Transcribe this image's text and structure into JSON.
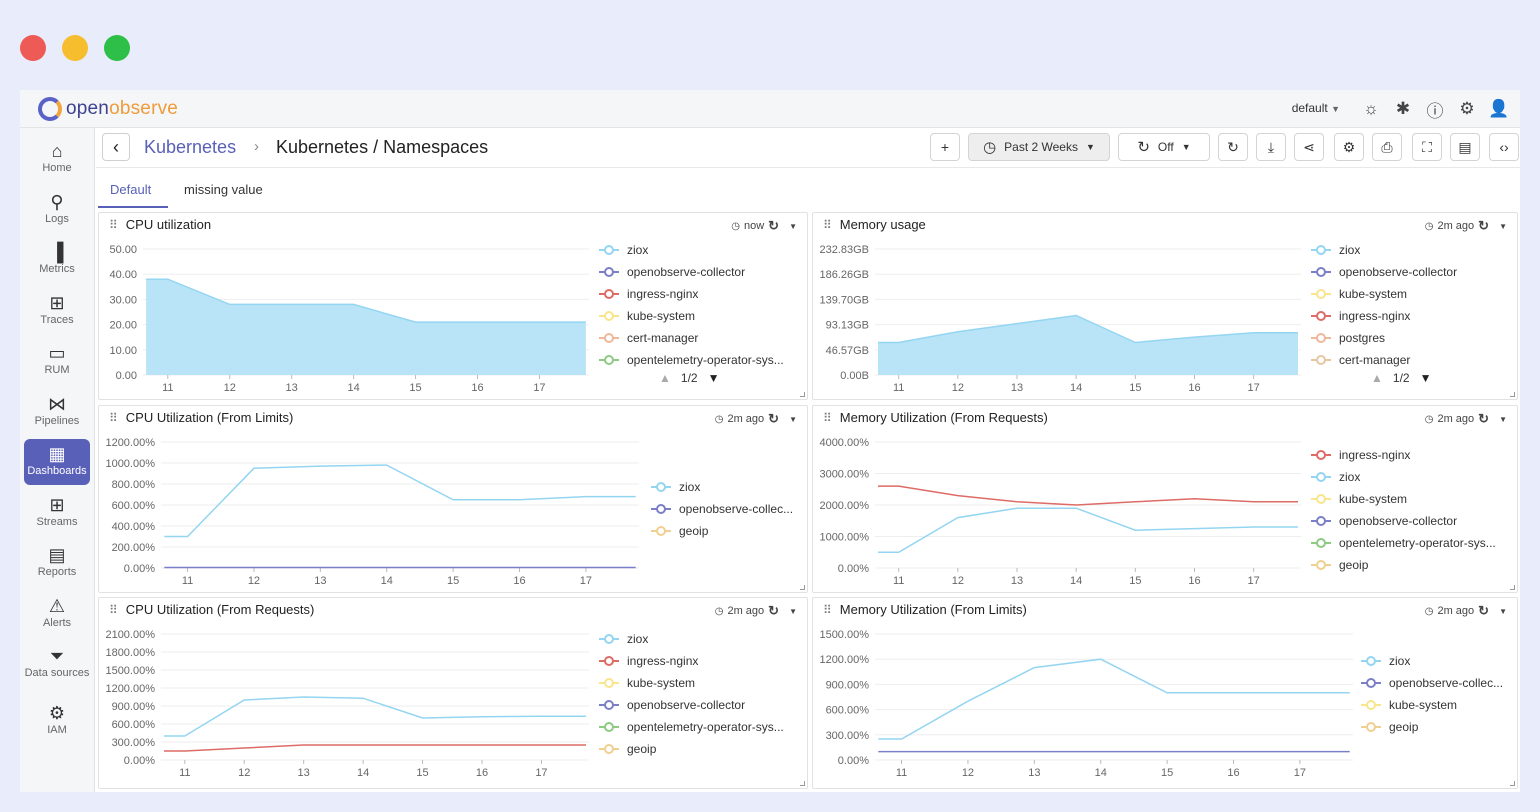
{
  "window": {
    "dots": [
      "#ee5a55",
      "#f6bd2f",
      "#2dbf47"
    ]
  },
  "topbar": {
    "logo_pre": "open",
    "logo_post": "observe",
    "org": "default",
    "org_caret": "▼",
    "icons": [
      "sun-icon",
      "slack-icon",
      "help-icon",
      "settings-icon",
      "user-icon"
    ]
  },
  "sidebar": {
    "items": [
      {
        "label": "Home",
        "icon": "⌂",
        "name": "home"
      },
      {
        "label": "Logs",
        "icon": "⚲",
        "name": "logs"
      },
      {
        "label": "Metrics",
        "icon": "▐",
        "name": "metrics"
      },
      {
        "label": "Traces",
        "icon": "⊞",
        "name": "traces"
      },
      {
        "label": "RUM",
        "icon": "▭",
        "name": "rum"
      },
      {
        "label": "Pipelines",
        "icon": "⋈",
        "name": "pipelines"
      },
      {
        "label": "Dashboards",
        "icon": "▦",
        "name": "dashboards",
        "active": true
      },
      {
        "label": "Streams",
        "icon": "⊞",
        "name": "streams"
      },
      {
        "label": "Reports",
        "icon": "▤",
        "name": "reports"
      },
      {
        "label": "Alerts",
        "icon": "⚠",
        "name": "alerts"
      },
      {
        "label": "Data sources",
        "icon": "⏷",
        "name": "data-sources"
      },
      {
        "label": "IAM",
        "icon": "⚙",
        "name": "iam"
      }
    ]
  },
  "header": {
    "back": "‹",
    "crumb_parent": "Kubernetes",
    "crumb_sep": "›",
    "crumb_current": "Kubernetes / Namespaces",
    "add": "+",
    "time_range": "Past 2 Weeks",
    "refresh_interval": "Off",
    "caret": "▼"
  },
  "tabs": [
    {
      "label": "Default",
      "active": true
    },
    {
      "label": "missing value",
      "active": false
    }
  ],
  "x_ticks": [
    "11",
    "12",
    "13",
    "14",
    "15",
    "16",
    "17"
  ],
  "panels": [
    {
      "title": "CPU utilization",
      "time": "now",
      "y_ticks": [
        "50.00",
        "40.00",
        "30.00",
        "20.00",
        "10.00",
        "0.00"
      ],
      "legend": [
        {
          "name": "ziox",
          "color": "#94d5f1"
        },
        {
          "name": "openobserve-collector",
          "color": "#7b7fc7"
        },
        {
          "name": "ingress-nginx",
          "color": "#dd6b66"
        },
        {
          "name": "kube-system",
          "color": "#f8e58c"
        },
        {
          "name": "cert-manager",
          "color": "#f0b89a"
        },
        {
          "name": "opentelemetry-operator-sys...",
          "color": "#8ccb80"
        }
      ],
      "pager": "1/2"
    },
    {
      "title": "Memory usage",
      "time": "2m ago",
      "y_ticks": [
        "232.83GB",
        "186.26GB",
        "139.70GB",
        "93.13GB",
        "46.57GB",
        "0.00B"
      ],
      "legend": [
        {
          "name": "ziox",
          "color": "#94d5f1"
        },
        {
          "name": "openobserve-collector",
          "color": "#7b7fc7"
        },
        {
          "name": "kube-system",
          "color": "#f8e58c"
        },
        {
          "name": "ingress-nginx",
          "color": "#dd6b66"
        },
        {
          "name": "postgres",
          "color": "#f0b89a"
        },
        {
          "name": "cert-manager",
          "color": "#e8c7a0"
        }
      ],
      "pager": "1/2"
    },
    {
      "title": "CPU Utilization (From Limits)",
      "time": "2m ago",
      "y_ticks": [
        "1200.00%",
        "1000.00%",
        "800.00%",
        "600.00%",
        "400.00%",
        "200.00%",
        "0.00%"
      ],
      "legend": [
        {
          "name": "ziox",
          "color": "#94d5f1"
        },
        {
          "name": "openobserve-collec...",
          "color": "#7b7fc7"
        },
        {
          "name": "geoip",
          "color": "#f0d090"
        }
      ]
    },
    {
      "title": "Memory Utilization (From Requests)",
      "time": "2m ago",
      "y_ticks": [
        "4000.00%",
        "3000.00%",
        "2000.00%",
        "1000.00%",
        "0.00%"
      ],
      "legend": [
        {
          "name": "ingress-nginx",
          "color": "#dd6b66"
        },
        {
          "name": "ziox",
          "color": "#94d5f1"
        },
        {
          "name": "kube-system",
          "color": "#f8e58c"
        },
        {
          "name": "openobserve-collector",
          "color": "#7b7fc7"
        },
        {
          "name": "opentelemetry-operator-sys...",
          "color": "#8ccb80"
        },
        {
          "name": "geoip",
          "color": "#f0d090"
        }
      ]
    },
    {
      "title": "CPU Utilization (From Requests)",
      "time": "2m ago",
      "y_ticks": [
        "2100.00%",
        "1800.00%",
        "1500.00%",
        "1200.00%",
        "900.00%",
        "600.00%",
        "300.00%",
        "0.00%"
      ],
      "legend": [
        {
          "name": "ziox",
          "color": "#94d5f1"
        },
        {
          "name": "ingress-nginx",
          "color": "#dd6b66"
        },
        {
          "name": "kube-system",
          "color": "#f8e58c"
        },
        {
          "name": "openobserve-collector",
          "color": "#7b7fc7"
        },
        {
          "name": "opentelemetry-operator-sys...",
          "color": "#8ccb80"
        },
        {
          "name": "geoip",
          "color": "#f0d090"
        }
      ]
    },
    {
      "title": "Memory Utilization (From Limits)",
      "time": "2m ago",
      "y_ticks": [
        "1500.00%",
        "1200.00%",
        "900.00%",
        "600.00%",
        "300.00%",
        "0.00%"
      ],
      "legend": [
        {
          "name": "ziox",
          "color": "#94d5f1"
        },
        {
          "name": "openobserve-collec...",
          "color": "#7b7fc7"
        },
        {
          "name": "kube-system",
          "color": "#f8e58c"
        },
        {
          "name": "geoip",
          "color": "#f0d090"
        }
      ]
    }
  ],
  "chart_data": [
    {
      "type": "area",
      "title": "CPU utilization",
      "x": [
        "11",
        "12",
        "13",
        "14",
        "15",
        "16",
        "17"
      ],
      "ylim": [
        0,
        50
      ],
      "series": [
        {
          "name": "ziox",
          "values": [
            38,
            28,
            28,
            28,
            21,
            21,
            21
          ]
        }
      ]
    },
    {
      "type": "area",
      "title": "Memory usage",
      "x": [
        "11",
        "12",
        "13",
        "14",
        "15",
        "16",
        "17"
      ],
      "ylim": [
        0,
        232.83
      ],
      "series": [
        {
          "name": "ziox",
          "values": [
            60,
            80,
            95,
            110,
            60,
            70,
            78
          ]
        }
      ]
    },
    {
      "type": "line",
      "title": "CPU Utilization (From Limits)",
      "x": [
        "11",
        "12",
        "13",
        "14",
        "15",
        "16",
        "17"
      ],
      "ylim": [
        0,
        1200
      ],
      "series": [
        {
          "name": "ziox",
          "values": [
            300,
            950,
            970,
            980,
            650,
            650,
            680
          ]
        },
        {
          "name": "openobserve-collec...",
          "values": [
            5,
            5,
            5,
            5,
            5,
            5,
            5
          ]
        }
      ]
    },
    {
      "type": "line",
      "title": "Memory Utilization (From Requests)",
      "x": [
        "11",
        "12",
        "13",
        "14",
        "15",
        "16",
        "17"
      ],
      "ylim": [
        0,
        4000
      ],
      "series": [
        {
          "name": "ingress-nginx",
          "values": [
            2600,
            2300,
            2100,
            2000,
            2100,
            2200,
            2100
          ]
        },
        {
          "name": "ziox",
          "values": [
            500,
            1600,
            1900,
            1900,
            1200,
            1250,
            1300
          ]
        }
      ]
    },
    {
      "type": "line",
      "title": "CPU Utilization (From Requests)",
      "x": [
        "11",
        "12",
        "13",
        "14",
        "15",
        "16",
        "17"
      ],
      "ylim": [
        0,
        2100
      ],
      "series": [
        {
          "name": "ziox",
          "values": [
            400,
            1000,
            1050,
            1030,
            700,
            720,
            730
          ]
        },
        {
          "name": "ingress-nginx",
          "values": [
            150,
            200,
            250,
            250,
            250,
            250,
            250
          ]
        }
      ]
    },
    {
      "type": "line",
      "title": "Memory Utilization (From Limits)",
      "x": [
        "11",
        "12",
        "13",
        "14",
        "15",
        "16",
        "17"
      ],
      "ylim": [
        0,
        1500
      ],
      "series": [
        {
          "name": "ziox",
          "values": [
            250,
            700,
            1100,
            1200,
            800,
            800,
            800
          ]
        },
        {
          "name": "openobserve-collec...",
          "values": [
            100,
            100,
            100,
            100,
            100,
            100,
            100
          ]
        }
      ]
    }
  ]
}
